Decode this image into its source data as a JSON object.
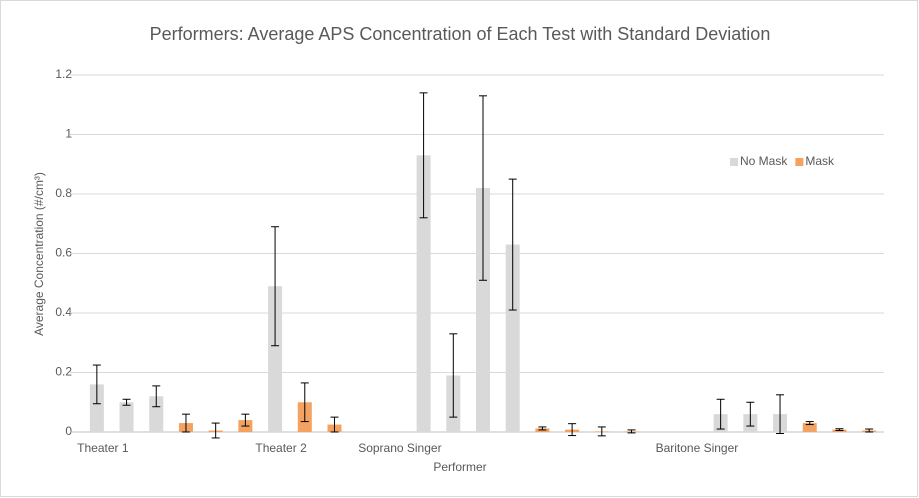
{
  "chart_data": {
    "type": "bar",
    "title": "Performers: Average APS Concentration of Each Test with Standard Deviation",
    "x_label": "Performer",
    "y_label": "Average Concentration (#/cm³)",
    "categories": [
      "Theater 1",
      null,
      null,
      null,
      null,
      null,
      "Theater 2",
      null,
      null,
      null,
      "Soprano Singer",
      null,
      null,
      null,
      null,
      null,
      null,
      null,
      null,
      null,
      "Baritone Singer",
      null,
      null,
      null,
      null,
      null,
      null
    ],
    "series": [
      {
        "name": "No Mask",
        "color": "#d9d9d9",
        "values": [
          0.16,
          0.1,
          0.12,
          null,
          null,
          null,
          0.49,
          null,
          null,
          null,
          null,
          0.93,
          0.19,
          0.82,
          0.63,
          null,
          null,
          null,
          null,
          null,
          null,
          0.06,
          0.06,
          0.06,
          null,
          null,
          null
        ],
        "errors": [
          0.065,
          0.01,
          0.035,
          null,
          null,
          null,
          0.2,
          null,
          null,
          null,
          null,
          0.21,
          0.14,
          0.31,
          0.22,
          null,
          null,
          null,
          null,
          null,
          null,
          0.05,
          0.04,
          0.065,
          null,
          null,
          null
        ]
      },
      {
        "name": "Mask",
        "color": "#f4a261",
        "values": [
          null,
          null,
          null,
          0.03,
          0.005,
          0.04,
          null,
          0.1,
          0.025,
          null,
          null,
          null,
          null,
          null,
          null,
          0.012,
          0.008,
          0.002,
          0.002,
          null,
          null,
          null,
          null,
          null,
          0.03,
          0.008,
          0.005
        ],
        "errors": [
          null,
          null,
          null,
          0.03,
          0.025,
          0.02,
          null,
          0.065,
          0.025,
          null,
          null,
          null,
          null,
          null,
          null,
          0.005,
          0.02,
          0.015,
          0.005,
          null,
          null,
          null,
          null,
          null,
          0.005,
          0.003,
          0.005
        ]
      }
    ],
    "ylim": [
      0,
      1.2
    ],
    "yticks": [
      0,
      0.2,
      0.4,
      0.6,
      0.8,
      1,
      1.2
    ],
    "grid": true,
    "legend": "upper right"
  }
}
